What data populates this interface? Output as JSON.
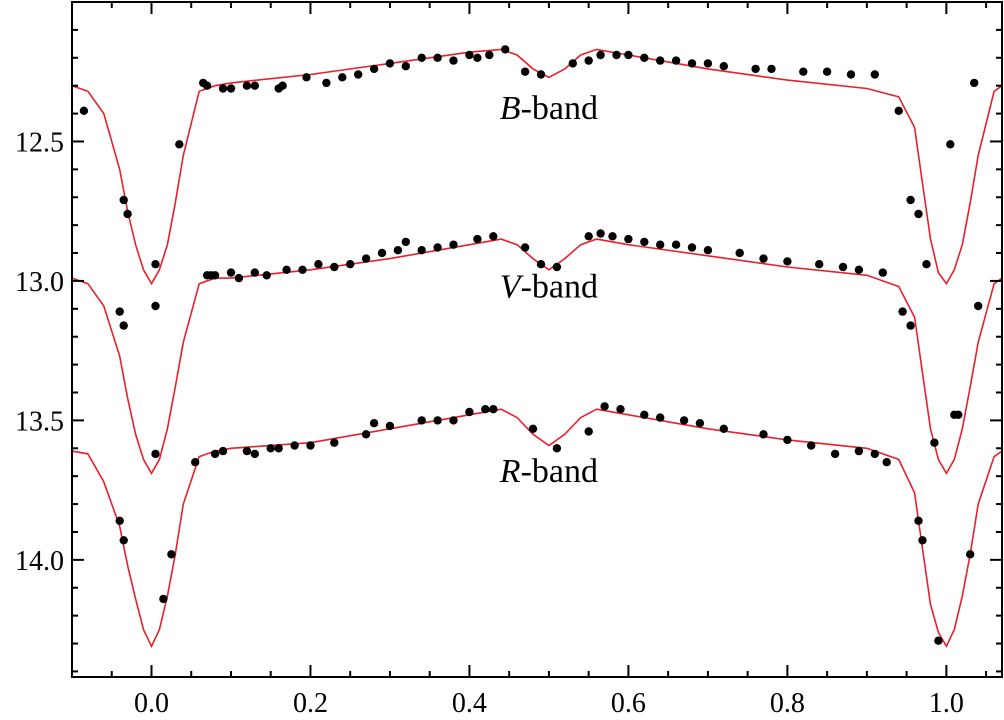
{
  "chart_data": {
    "type": "scatter",
    "title": "",
    "xlabel": "",
    "ylabel": "",
    "xlim": [
      -0.1,
      1.07
    ],
    "ylim": [
      12.0,
      14.42
    ],
    "y_inverted": true,
    "grid": false,
    "x_ticks": [
      0.0,
      0.2,
      0.4,
      0.6,
      0.8,
      1.0
    ],
    "x_tick_labels": [
      "0.0",
      "0.2",
      "0.4",
      "0.6",
      "0.8",
      "1.0"
    ],
    "y_ticks": [
      12.5,
      13.0,
      13.5,
      14.0
    ],
    "y_tick_labels": [
      "12.5",
      "13.0",
      "13.5",
      "14.0"
    ],
    "colors": {
      "model": "#e8202a",
      "observed": "#000000"
    },
    "series": [
      {
        "label_letter": "B",
        "label_suffix": "-band",
        "label_at": [
          0.5,
          12.42
        ],
        "model": {
          "x": [
            -0.1,
            -0.08,
            -0.06,
            -0.04,
            -0.03,
            -0.02,
            -0.01,
            0.0,
            0.01,
            0.02,
            0.03,
            0.04,
            0.06,
            0.08,
            0.1,
            0.2,
            0.3,
            0.4,
            0.44,
            0.46,
            0.48,
            0.5,
            0.52,
            0.54,
            0.56,
            0.6,
            0.7,
            0.8,
            0.9,
            0.94,
            0.96,
            0.97,
            0.98,
            0.99,
            1.0,
            1.01,
            1.02,
            1.03,
            1.04,
            1.06,
            1.07
          ],
          "y": [
            12.3,
            12.32,
            12.4,
            12.6,
            12.75,
            12.87,
            12.96,
            13.01,
            12.96,
            12.87,
            12.72,
            12.55,
            12.32,
            12.3,
            12.29,
            12.26,
            12.22,
            12.18,
            12.17,
            12.19,
            12.24,
            12.27,
            12.24,
            12.19,
            12.17,
            12.19,
            12.24,
            12.28,
            12.31,
            12.34,
            12.45,
            12.65,
            12.85,
            12.97,
            13.01,
            12.96,
            12.87,
            12.72,
            12.55,
            12.32,
            12.3
          ]
        },
        "observed": {
          "x": [
            -0.085,
            -0.035,
            -0.03,
            0.005,
            0.035,
            0.065,
            0.07,
            0.09,
            0.1,
            0.12,
            0.13,
            0.16,
            0.165,
            0.195,
            0.22,
            0.24,
            0.26,
            0.28,
            0.3,
            0.32,
            0.34,
            0.36,
            0.38,
            0.4,
            0.41,
            0.425,
            0.445,
            0.47,
            0.49,
            0.53,
            0.55,
            0.565,
            0.585,
            0.6,
            0.62,
            0.64,
            0.66,
            0.68,
            0.7,
            0.72,
            0.76,
            0.78,
            0.82,
            0.85,
            0.88,
            0.91,
            0.94,
            0.955,
            0.965,
            0.975,
            1.005,
            1.035
          ],
          "y": [
            12.39,
            12.71,
            12.76,
            12.94,
            12.51,
            12.29,
            12.3,
            12.31,
            12.31,
            12.3,
            12.3,
            12.31,
            12.3,
            12.27,
            12.29,
            12.27,
            12.26,
            12.24,
            12.22,
            12.23,
            12.2,
            12.2,
            12.21,
            12.19,
            12.2,
            12.19,
            12.17,
            12.25,
            12.26,
            12.22,
            12.21,
            12.19,
            12.19,
            12.19,
            12.2,
            12.21,
            12.21,
            12.22,
            12.22,
            12.23,
            12.24,
            12.24,
            12.25,
            12.25,
            12.26,
            12.26,
            12.39,
            12.71,
            12.76,
            12.94,
            12.51,
            12.29
          ]
        }
      },
      {
        "label_letter": "V",
        "label_suffix": "-band",
        "label_at": [
          0.5,
          13.06
        ],
        "model": {
          "x": [
            -0.1,
            -0.08,
            -0.06,
            -0.04,
            -0.03,
            -0.02,
            -0.01,
            0.0,
            0.01,
            0.02,
            0.03,
            0.04,
            0.06,
            0.08,
            0.1,
            0.2,
            0.3,
            0.4,
            0.44,
            0.46,
            0.48,
            0.5,
            0.52,
            0.54,
            0.56,
            0.6,
            0.7,
            0.8,
            0.9,
            0.94,
            0.96,
            0.97,
            0.98,
            0.99,
            1.0,
            1.01,
            1.02,
            1.03,
            1.04,
            1.06,
            1.07
          ],
          "y": [
            12.99,
            13.01,
            13.09,
            13.27,
            13.42,
            13.55,
            13.64,
            13.69,
            13.64,
            13.53,
            13.38,
            13.22,
            13.01,
            12.99,
            12.99,
            12.96,
            12.92,
            12.87,
            12.85,
            12.87,
            12.92,
            12.96,
            12.92,
            12.87,
            12.85,
            12.87,
            12.91,
            12.95,
            12.98,
            13.02,
            13.13,
            13.33,
            13.53,
            13.64,
            13.69,
            13.64,
            13.53,
            13.38,
            13.22,
            13.01,
            12.99
          ]
        },
        "observed": {
          "x": [
            -0.04,
            -0.035,
            0.005,
            0.07,
            0.075,
            0.08,
            0.1,
            0.11,
            0.13,
            0.145,
            0.17,
            0.19,
            0.21,
            0.23,
            0.25,
            0.27,
            0.29,
            0.31,
            0.32,
            0.34,
            0.36,
            0.38,
            0.41,
            0.43,
            0.47,
            0.49,
            0.51,
            0.55,
            0.565,
            0.58,
            0.6,
            0.62,
            0.64,
            0.66,
            0.68,
            0.7,
            0.74,
            0.77,
            0.8,
            0.84,
            0.87,
            0.89,
            0.92,
            0.945,
            0.955,
            0.985,
            1.01,
            1.04
          ],
          "y": [
            13.11,
            13.16,
            13.09,
            12.98,
            12.98,
            12.98,
            12.97,
            12.99,
            12.97,
            12.98,
            12.96,
            12.96,
            12.94,
            12.95,
            12.94,
            12.92,
            12.9,
            12.89,
            12.86,
            12.89,
            12.88,
            12.87,
            12.85,
            12.84,
            12.88,
            12.94,
            12.95,
            12.84,
            12.83,
            12.84,
            12.85,
            12.86,
            12.87,
            12.87,
            12.88,
            12.89,
            12.9,
            12.92,
            12.93,
            12.94,
            12.95,
            12.96,
            12.97,
            13.11,
            13.16,
            13.58,
            13.48,
            13.09
          ]
        }
      },
      {
        "label_letter": "R",
        "label_suffix": "-band",
        "label_at": [
          0.5,
          13.72
        ],
        "model": {
          "x": [
            -0.1,
            -0.08,
            -0.06,
            -0.04,
            -0.03,
            -0.02,
            -0.01,
            0.0,
            0.01,
            0.02,
            0.03,
            0.04,
            0.06,
            0.08,
            0.1,
            0.2,
            0.3,
            0.4,
            0.44,
            0.46,
            0.48,
            0.5,
            0.52,
            0.54,
            0.56,
            0.6,
            0.7,
            0.8,
            0.9,
            0.94,
            0.96,
            0.97,
            0.98,
            0.99,
            1.0,
            1.01,
            1.02,
            1.03,
            1.04,
            1.06,
            1.07
          ],
          "y": [
            13.61,
            13.62,
            13.72,
            13.88,
            14.02,
            14.14,
            14.25,
            14.31,
            14.25,
            14.13,
            13.98,
            13.8,
            13.63,
            13.61,
            13.6,
            13.58,
            13.53,
            13.48,
            13.46,
            13.49,
            13.55,
            13.59,
            13.55,
            13.49,
            13.46,
            13.48,
            13.53,
            13.57,
            13.6,
            13.64,
            13.76,
            13.96,
            14.16,
            14.26,
            14.31,
            14.25,
            14.13,
            13.98,
            13.8,
            13.63,
            13.61
          ]
        },
        "observed": {
          "x": [
            -0.04,
            -0.035,
            0.005,
            0.015,
            0.025,
            0.055,
            0.08,
            0.09,
            0.12,
            0.13,
            0.15,
            0.16,
            0.18,
            0.2,
            0.23,
            0.27,
            0.28,
            0.3,
            0.34,
            0.36,
            0.38,
            0.4,
            0.42,
            0.43,
            0.48,
            0.51,
            0.55,
            0.57,
            0.59,
            0.62,
            0.64,
            0.67,
            0.69,
            0.72,
            0.77,
            0.8,
            0.83,
            0.86,
            0.89,
            0.91,
            0.925,
            0.965,
            0.97,
            0.99,
            1.015,
            1.03
          ],
          "y": [
            13.86,
            13.93,
            13.62,
            14.14,
            13.98,
            13.65,
            13.62,
            13.61,
            13.61,
            13.62,
            13.6,
            13.6,
            13.59,
            13.59,
            13.58,
            13.55,
            13.51,
            13.52,
            13.5,
            13.5,
            13.5,
            13.47,
            13.46,
            13.46,
            13.53,
            13.6,
            13.54,
            13.45,
            13.46,
            13.48,
            13.49,
            13.5,
            13.51,
            13.53,
            13.55,
            13.57,
            13.59,
            13.62,
            13.61,
            13.62,
            13.65,
            13.86,
            13.93,
            14.29,
            13.48,
            13.98
          ]
        }
      }
    ]
  }
}
